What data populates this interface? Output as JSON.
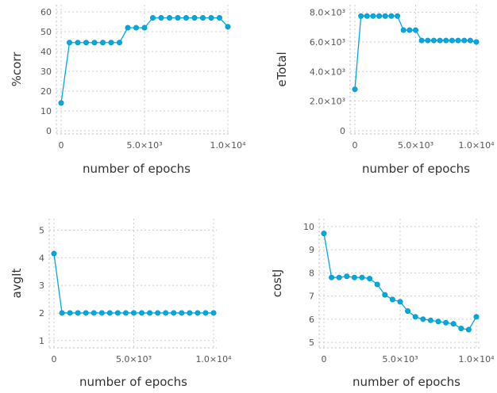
{
  "chart_data": [
    {
      "type": "line",
      "ylabel": "%corr",
      "xlabel": "number of epochs",
      "x": [
        0,
        500,
        1000,
        1500,
        2000,
        2500,
        3000,
        3500,
        4000,
        4500,
        5000,
        5500,
        6000,
        6500,
        7000,
        7500,
        8000,
        8500,
        9000,
        9500,
        10000
      ],
      "series": [
        {
          "values": [
            14,
            44.5,
            44.5,
            44.5,
            44.5,
            44.5,
            44.5,
            44.5,
            52,
            52,
            52,
            57,
            57,
            57,
            57,
            57,
            57,
            57,
            57,
            57,
            52.5
          ]
        }
      ],
      "xlim": [
        0,
        10000
      ],
      "ylim": [
        0,
        62
      ],
      "xticks": [
        0,
        5000,
        10000
      ],
      "xtick_labels": [
        "0",
        "5.0×10³",
        "1.0×10⁴"
      ],
      "yticks": [
        0,
        10,
        20,
        30,
        40,
        50,
        60
      ],
      "ytick_labels": [
        "0",
        "10",
        "20",
        "30",
        "40",
        "50",
        "60"
      ],
      "grid": true,
      "color": "#00a9e0"
    },
    {
      "type": "line",
      "ylabel": "eTotal",
      "xlabel": "number of epochs",
      "x": [
        0,
        500,
        1000,
        1500,
        2000,
        2500,
        3000,
        3500,
        4000,
        4500,
        5000,
        5500,
        6000,
        6500,
        7000,
        7500,
        8000,
        8500,
        9000,
        9500,
        10000
      ],
      "series": [
        {
          "values": [
            2800,
            7750,
            7750,
            7750,
            7750,
            7750,
            7750,
            7750,
            6800,
            6800,
            6800,
            6100,
            6100,
            6100,
            6100,
            6100,
            6100,
            6100,
            6100,
            6100,
            6000
          ]
        }
      ],
      "xlim": [
        0,
        10000
      ],
      "ylim": [
        0,
        8300
      ],
      "xticks": [
        0,
        5000,
        10000
      ],
      "xtick_labels": [
        "0",
        "5.0×10³",
        "1.0×10⁴"
      ],
      "yticks": [
        0,
        2000,
        4000,
        6000,
        8000
      ],
      "ytick_labels": [
        "0",
        "2.0×10³",
        "4.0×10³",
        "6.0×10³",
        "8.0×10³"
      ],
      "grid": true,
      "color": "#00a9e0"
    },
    {
      "type": "line",
      "ylabel": "avgIt",
      "xlabel": "number of epochs",
      "x": [
        0,
        500,
        1000,
        1500,
        2000,
        2500,
        3000,
        3500,
        4000,
        4500,
        5000,
        5500,
        6000,
        6500,
        7000,
        7500,
        8000,
        8500,
        9000,
        9500,
        10000
      ],
      "series": [
        {
          "values": [
            4.15,
            2,
            2,
            2,
            2,
            2,
            2,
            2,
            2,
            2,
            2,
            2,
            2,
            2,
            2,
            2,
            2,
            2,
            2,
            2,
            2
          ]
        }
      ],
      "xlim": [
        0,
        10000
      ],
      "ylim": [
        0.85,
        5.3
      ],
      "xticks": [
        0,
        5000,
        10000
      ],
      "xtick_labels": [
        "0",
        "5.0×10³",
        "1.0×10⁴"
      ],
      "yticks": [
        1,
        2,
        3,
        4,
        5
      ],
      "ytick_labels": [
        "1",
        "2",
        "3",
        "4",
        "5"
      ],
      "grid": true,
      "color": "#00a9e0"
    },
    {
      "type": "line",
      "ylabel": "costJ",
      "xlabel": "number of epochs",
      "x": [
        0,
        500,
        1000,
        1500,
        2000,
        2500,
        3000,
        3500,
        4000,
        4500,
        5000,
        5500,
        6000,
        6500,
        7000,
        7500,
        8000,
        8500,
        9000,
        9500,
        10000
      ],
      "series": [
        {
          "values": [
            9.7,
            7.8,
            7.8,
            7.85,
            7.8,
            7.8,
            7.75,
            7.5,
            7.05,
            6.85,
            6.75,
            6.35,
            6.1,
            6.0,
            5.95,
            5.9,
            5.85,
            5.8,
            5.6,
            5.55,
            6.1
          ]
        }
      ],
      "xlim": [
        0,
        10000
      ],
      "ylim": [
        4.9,
        10.2
      ],
      "xticks": [
        0,
        5000,
        10000
      ],
      "xtick_labels": [
        "0",
        "5.0×10³",
        "1.0×10⁴"
      ],
      "yticks": [
        5,
        6,
        7,
        8,
        9,
        10
      ],
      "ytick_labels": [
        "5",
        "6",
        "7",
        "8",
        "9",
        "10"
      ],
      "grid": true,
      "color": "#00a9e0"
    }
  ]
}
